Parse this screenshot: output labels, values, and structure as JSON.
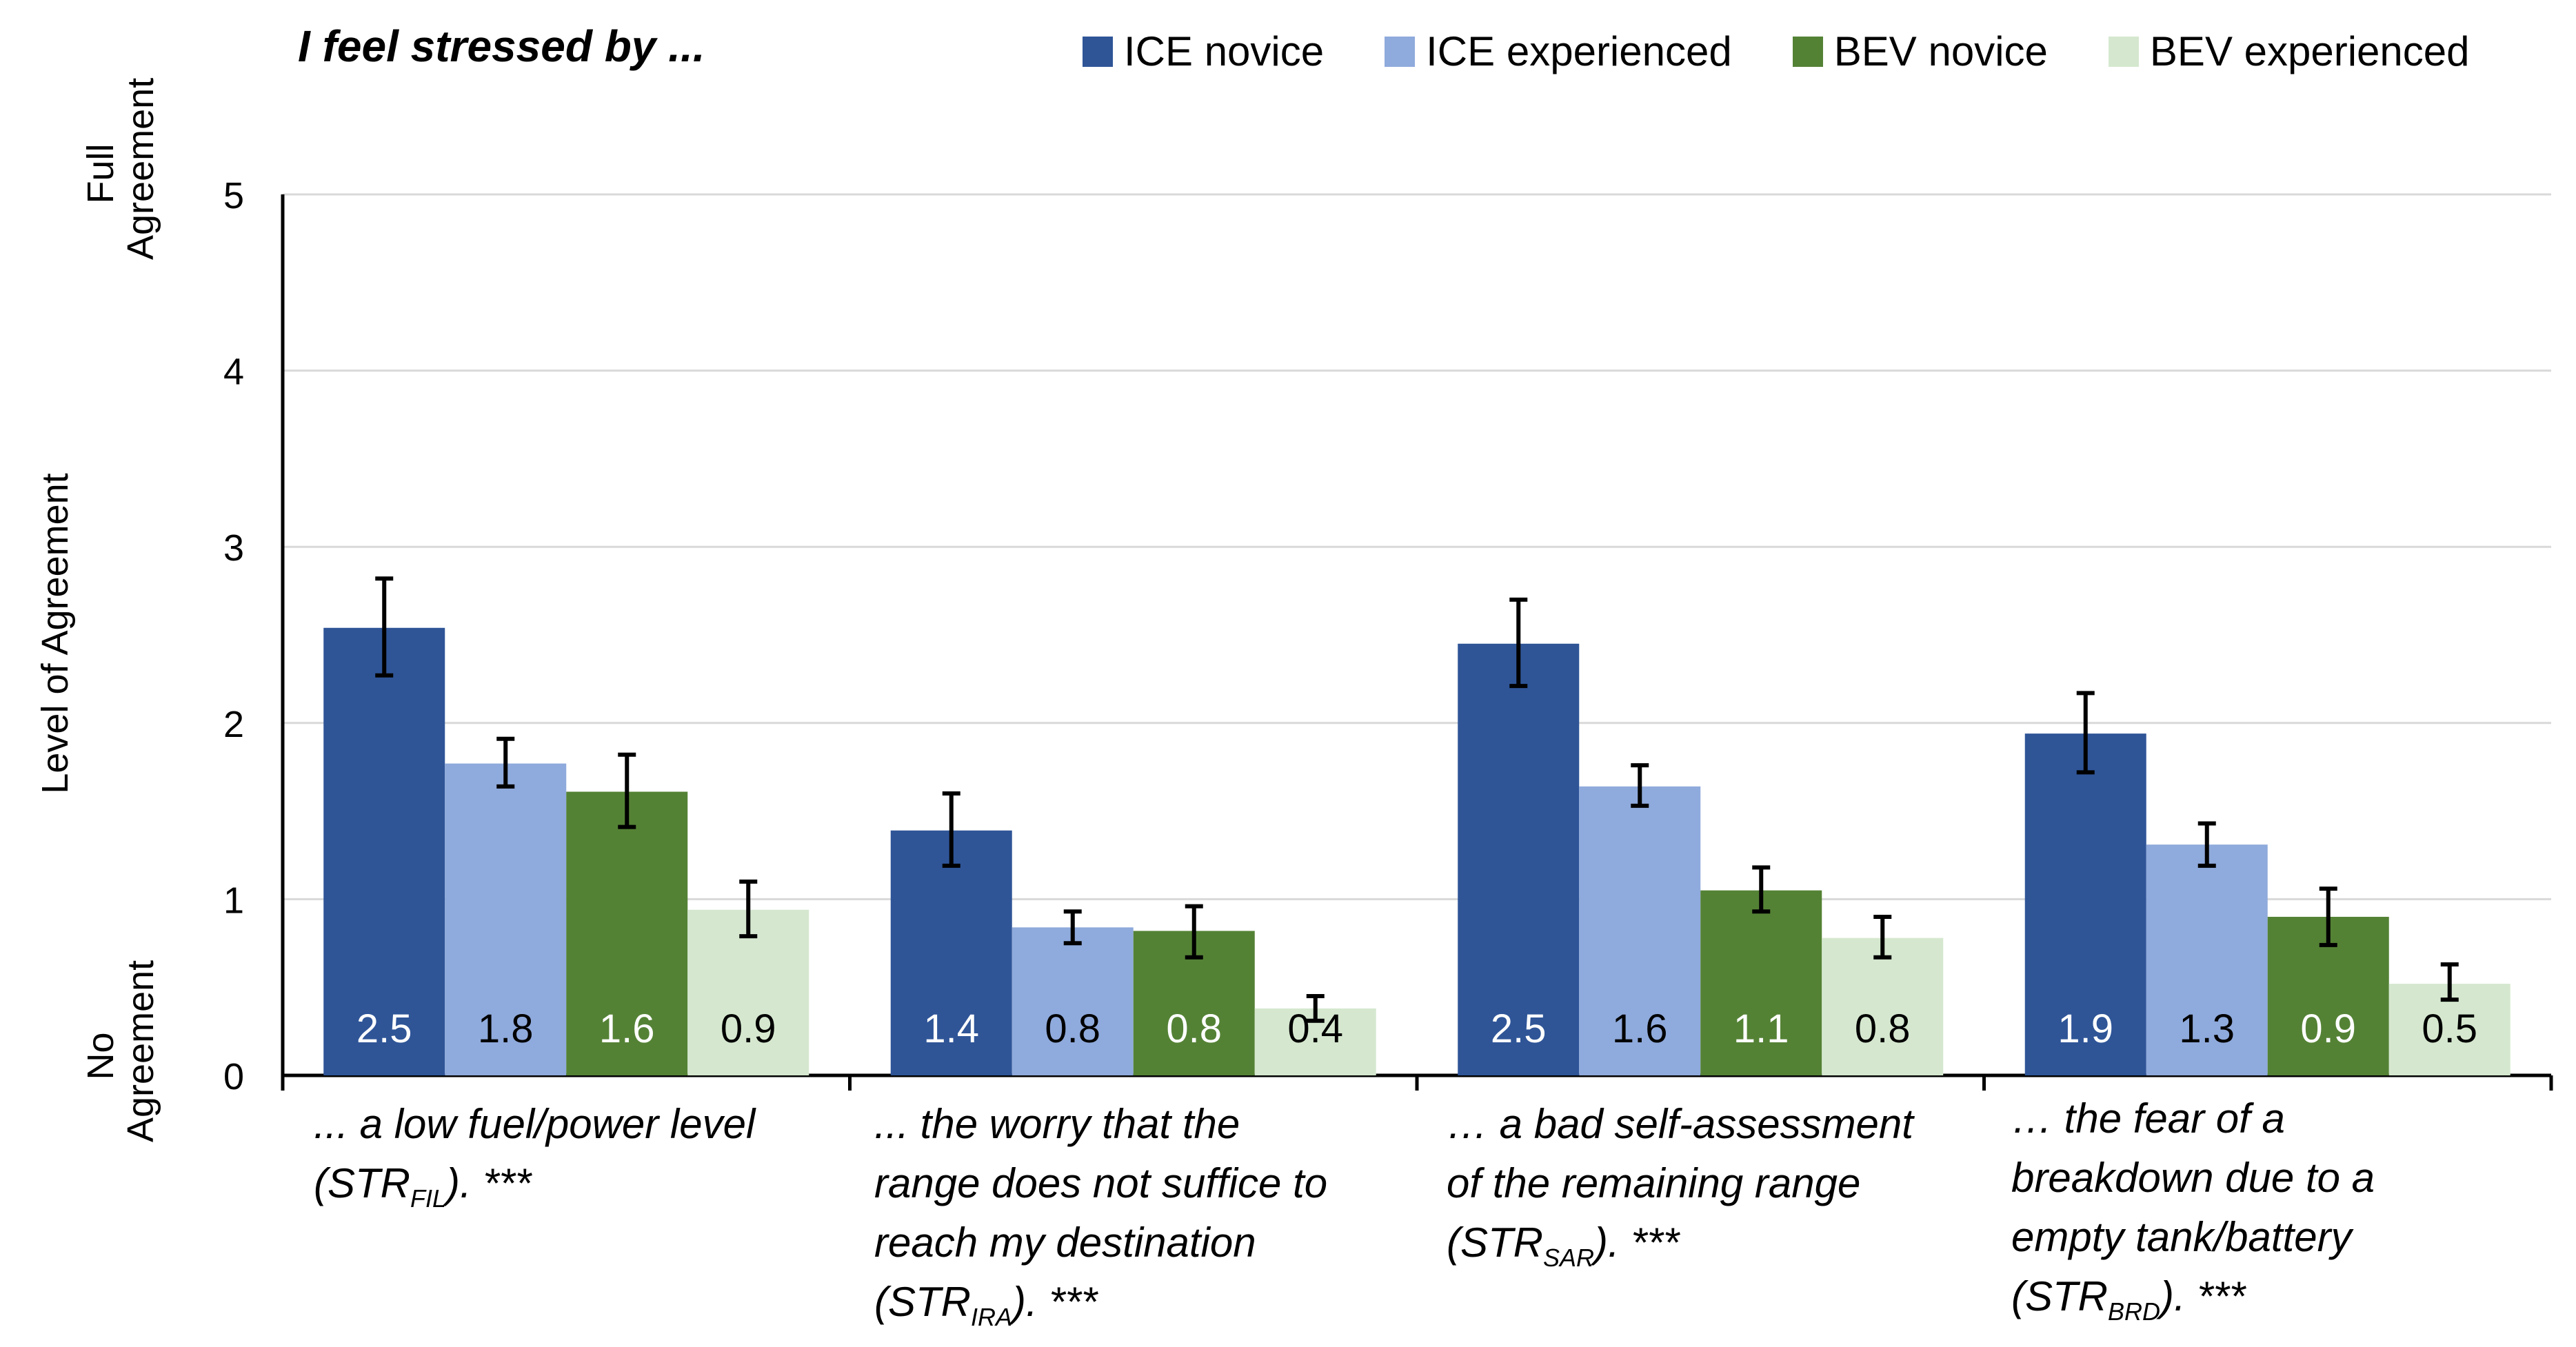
{
  "chart_data": {
    "type": "bar",
    "title": "I feel stressed by ...",
    "ylabel": "Level of Agreement",
    "ylim": [
      0,
      5
    ],
    "yticks": [
      "0",
      "1",
      "2",
      "3",
      "4",
      "5"
    ],
    "yaxis_top_label": "Full Agreement",
    "yaxis_bottom_label": "No Agreement",
    "grid": true,
    "legend_position": "top-right",
    "categories": [
      {
        "text": "... a low fuel/power level\n(STR",
        "sub": "FIL",
        "tail": "). ***"
      },
      {
        "text": "... the worry that the\nrange does not suffice to\nreach my destination\n(STR",
        "sub": "IRA",
        "tail": "). ***"
      },
      {
        "text": "… a bad self-assessment\nof the remaining range\n(STR",
        "sub": "SAR",
        "tail": "). ***"
      },
      {
        "text": "… the fear of a\nbreakdown due to a\nempty tank/battery\n(STR",
        "sub": "BRD",
        "tail": "). ***"
      }
    ],
    "series": [
      {
        "name": "ICE novice",
        "color": "#2F5597",
        "values": [
          2.54,
          1.39,
          2.45,
          1.94
        ],
        "labels": [
          "2.5",
          "1.4",
          "2.5",
          "1.9"
        ],
        "err_low": [
          2.27,
          1.19,
          2.21,
          1.72
        ],
        "err_high": [
          2.82,
          1.6,
          2.7,
          2.17
        ]
      },
      {
        "name": "ICE experienced",
        "color": "#8FAADC",
        "values": [
          1.77,
          0.84,
          1.64,
          1.31
        ],
        "labels": [
          "1.8",
          "0.8",
          "1.6",
          "1.3"
        ],
        "err_low": [
          1.64,
          0.75,
          1.53,
          1.19
        ],
        "err_high": [
          1.91,
          0.93,
          1.76,
          1.43
        ]
      },
      {
        "name": "BEV novice",
        "color": "#548235",
        "values": [
          1.61,
          0.82,
          1.05,
          0.9
        ],
        "labels": [
          "1.6",
          "0.8",
          "1.1",
          "0.9"
        ],
        "err_low": [
          1.41,
          0.67,
          0.93,
          0.74
        ],
        "err_high": [
          1.82,
          0.96,
          1.18,
          1.06
        ]
      },
      {
        "name": "BEV experienced",
        "color": "#D5E8CF",
        "values": [
          0.94,
          0.38,
          0.78,
          0.52
        ],
        "labels": [
          "0.9",
          "0.4",
          "0.8",
          "0.5"
        ],
        "err_low": [
          0.79,
          0.31,
          0.67,
          0.43
        ],
        "err_high": [
          1.1,
          0.45,
          0.9,
          0.63
        ]
      }
    ]
  }
}
